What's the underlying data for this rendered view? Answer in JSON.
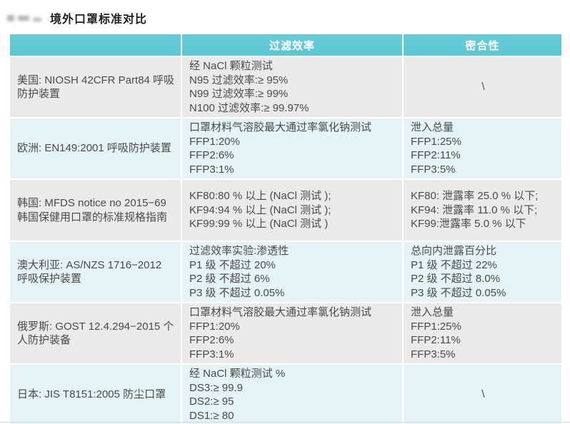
{
  "page": {
    "title": "境外口罩标准对比"
  },
  "colors": {
    "header_bg": "#5ec7d4",
    "header_bg_light": "#66cbd7",
    "header_text": "#ffffff",
    "row_gray": "#eaeaea",
    "row_cyan": "#e4f3f6",
    "body_text": "#4a4a4a"
  },
  "table": {
    "headers": [
      "",
      "过滤效率",
      "密合性"
    ],
    "rows": [
      {
        "standard": "美国: NIOSH 42CFR Part84 呼吸防护装置",
        "filtration_lines": [
          "经 NaCl 颗粒测试",
          "N95 过滤效率:≥ 95%",
          "N99 过滤效率:≥ 99%",
          "N100 过滤效率:≥ 99.97%"
        ],
        "filtration_center": false,
        "fit_lines": [
          "\\"
        ],
        "fit_center": true
      },
      {
        "standard": "欧洲: EN149:2001 呼吸防护装置",
        "filtration_lines": [
          "口罩材料气溶胶最大通过率氯化钠测试",
          "FFP1:20%",
          "FFP2:6%",
          "FFP3:1%"
        ],
        "filtration_center": false,
        "fit_lines": [
          "泄入总量",
          "FFP1:25%",
          "FFP2:11%",
          "FFP3:5%"
        ],
        "fit_center": false
      },
      {
        "standard": "韩国: MFDS notice no 2015−69 韩国保健用口罩的标准规格指南",
        "filtration_lines": [
          "KF80:80 % 以上 (NaCl 测试 );",
          "KF94:94 % 以上 (NaCl 测试 );",
          "KF99:99 % 以上 (NaCl 测试 )"
        ],
        "filtration_center": false,
        "fit_lines": [
          "KF80: 泄露率 25.0 % 以下;",
          "KF94: 泄露率 11.0 % 以下;",
          "KF99:泄露率 5.0 % 以下"
        ],
        "fit_center": false
      },
      {
        "standard": "澳大利亚: AS/NZS 1716−2012 呼吸保护装置",
        "filtration_lines": [
          "过滤效率实验:渗透性",
          "P1 级 不超过 20%",
          "P2 级 不超过 6%",
          "P3 级 不超过 0.05%"
        ],
        "filtration_center": false,
        "fit_lines": [
          "总向内泄露百分比",
          "P1 级 不超过 22%",
          "P2 级 不超过 8.0%",
          "P3 级 不超过 0.05%"
        ],
        "fit_center": false
      },
      {
        "standard": "俄罗斯: GOST 12.4.294−2015 个人防护装备",
        "filtration_lines": [
          "口罩材料气溶胶最大通过率氯化钠测试",
          "FFP1:20%",
          "FFP2:6%",
          "FFP3:1%"
        ],
        "filtration_center": false,
        "fit_lines": [
          "泄入总量",
          "FFP1:25%",
          "FFP2:11%",
          "FFP3:5%"
        ],
        "fit_center": false
      },
      {
        "standard": "日本: JIS T8151:2005 防尘口罩",
        "filtration_lines": [
          "经 NaCl 颗粒测试 %",
          "DS3:≥ 99.9",
          "DS2:≥ 95",
          "DS1:≥ 80"
        ],
        "filtration_center": false,
        "fit_lines": [
          "\\"
        ],
        "fit_center": true
      }
    ]
  }
}
